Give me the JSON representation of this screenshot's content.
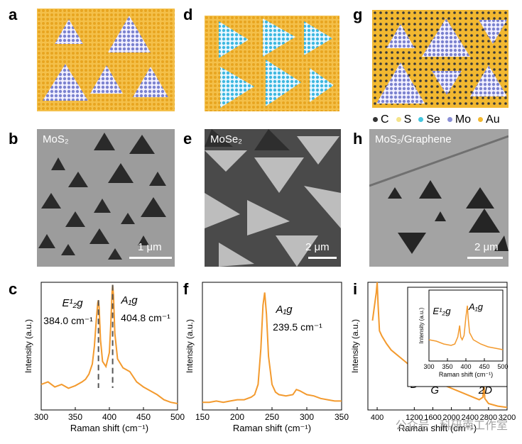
{
  "panels": {
    "a": "a",
    "b": "b",
    "c": "c",
    "d": "d",
    "e": "e",
    "f": "f",
    "g": "g",
    "h": "h",
    "i": "i"
  },
  "legend": [
    {
      "label": "C",
      "color": "#333333"
    },
    {
      "label": "S",
      "color": "#f5e48a"
    },
    {
      "label": "Se",
      "color": "#45c6df"
    },
    {
      "label": "Mo",
      "color": "#8a8fd6"
    },
    {
      "label": "Au",
      "color": "#f2b830"
    }
  ],
  "sem": {
    "b": {
      "label": "MoS₂",
      "scale": "1 μm"
    },
    "e": {
      "label": "MoSe₂",
      "scale": "2 μm"
    },
    "h": {
      "label": "MoS₂/Graphene",
      "scale": "2 μm"
    }
  },
  "colors": {
    "line": "#f39a2e",
    "gold": "#f2b830",
    "dashed": "#555555"
  },
  "chart_data": [
    {
      "id": "c",
      "type": "line",
      "xlabel": "Raman shift (cm⁻¹)",
      "ylabel": "Intensity (a.u.)",
      "xlim": [
        300,
        500
      ],
      "xticks": [
        300,
        350,
        400,
        450,
        500
      ],
      "annotations": [
        {
          "text": "E¹₂g",
          "value": "384.0 cm⁻¹"
        },
        {
          "text": "A₁g",
          "value": "404.8 cm⁻¹"
        }
      ],
      "x": [
        300,
        310,
        320,
        330,
        340,
        350,
        360,
        365,
        370,
        375,
        378,
        381,
        383,
        384,
        385,
        387,
        390,
        395,
        400,
        402,
        404,
        404.8,
        406,
        408,
        412,
        420,
        430,
        440,
        450,
        460,
        470,
        480,
        490,
        500
      ],
      "y": [
        0.2,
        0.22,
        0.18,
        0.2,
        0.17,
        0.19,
        0.22,
        0.24,
        0.28,
        0.36,
        0.5,
        0.72,
        0.84,
        0.86,
        0.8,
        0.55,
        0.38,
        0.34,
        0.45,
        0.66,
        0.92,
        0.98,
        0.9,
        0.6,
        0.4,
        0.33,
        0.3,
        0.22,
        0.18,
        0.15,
        0.12,
        0.08,
        0.06,
        0.05
      ]
    },
    {
      "id": "f",
      "type": "line",
      "xlabel": "Raman shift (cm⁻¹)",
      "ylabel": "Intensity (a.u.)",
      "xlim": [
        150,
        350
      ],
      "xticks": [
        150,
        200,
        250,
        300,
        350
      ],
      "annotations": [
        {
          "text": "A₁g",
          "value": "239.5 cm⁻¹"
        }
      ],
      "x": [
        150,
        160,
        170,
        180,
        190,
        200,
        210,
        220,
        225,
        230,
        234,
        237,
        239.5,
        242,
        245,
        250,
        255,
        260,
        270,
        280,
        285,
        290,
        300,
        310,
        320,
        330,
        340,
        350
      ],
      "y": [
        0.06,
        0.06,
        0.07,
        0.06,
        0.07,
        0.08,
        0.08,
        0.1,
        0.12,
        0.2,
        0.48,
        0.82,
        0.92,
        0.75,
        0.42,
        0.2,
        0.14,
        0.12,
        0.11,
        0.12,
        0.16,
        0.15,
        0.12,
        0.11,
        0.09,
        0.08,
        0.07,
        0.07
      ]
    },
    {
      "id": "i",
      "type": "line",
      "xlabel": "Raman shift (cm⁻¹)",
      "ylabel": "Intensity (a.u.)",
      "xlim": [
        200,
        3200
      ],
      "xticks": [
        400,
        1200,
        1600,
        2000,
        2400,
        2800,
        3200
      ],
      "xticklabels": [
        "400",
        "1200",
        "1600",
        "2000",
        "2400",
        "2800",
        "3200"
      ],
      "annotations": [
        {
          "text": "D",
          "x": 1350
        },
        {
          "text": "G",
          "x": 1580
        },
        {
          "text": "2D",
          "x": 2700
        }
      ],
      "x": [
        300,
        380,
        400,
        420,
        450,
        500,
        600,
        700,
        800,
        1000,
        1200,
        1340,
        1350,
        1360,
        1500,
        1570,
        1580,
        1590,
        1800,
        2000,
        2200,
        2400,
        2600,
        2680,
        2700,
        2720,
        2800,
        3000,
        3200
      ],
      "y": [
        0.7,
        0.92,
        1.0,
        0.82,
        0.62,
        0.58,
        0.52,
        0.47,
        0.44,
        0.38,
        0.32,
        0.3,
        0.34,
        0.29,
        0.25,
        0.24,
        0.3,
        0.23,
        0.2,
        0.17,
        0.14,
        0.11,
        0.08,
        0.1,
        0.22,
        0.09,
        0.05,
        0.03,
        0.02
      ],
      "inset": {
        "xlabel": "Raman shift (cm⁻¹)",
        "ylabel": "Intensity (a.u.)",
        "xlim": [
          300,
          500
        ],
        "xticks": [
          300,
          350,
          400,
          450,
          500
        ],
        "annotations": [
          {
            "text": "E¹₂g"
          },
          {
            "text": "A₁g"
          }
        ],
        "x": [
          300,
          320,
          340,
          360,
          370,
          378,
          383,
          386,
          390,
          395,
          400,
          404,
          406,
          410,
          420,
          440,
          460,
          480,
          500
        ],
        "y": [
          0.3,
          0.28,
          0.24,
          0.22,
          0.24,
          0.34,
          0.5,
          0.34,
          0.3,
          0.36,
          0.62,
          0.78,
          0.62,
          0.4,
          0.3,
          0.24,
          0.2,
          0.18,
          0.16
        ]
      }
    }
  ],
  "watermark": "公众号 · 科研南工作室"
}
